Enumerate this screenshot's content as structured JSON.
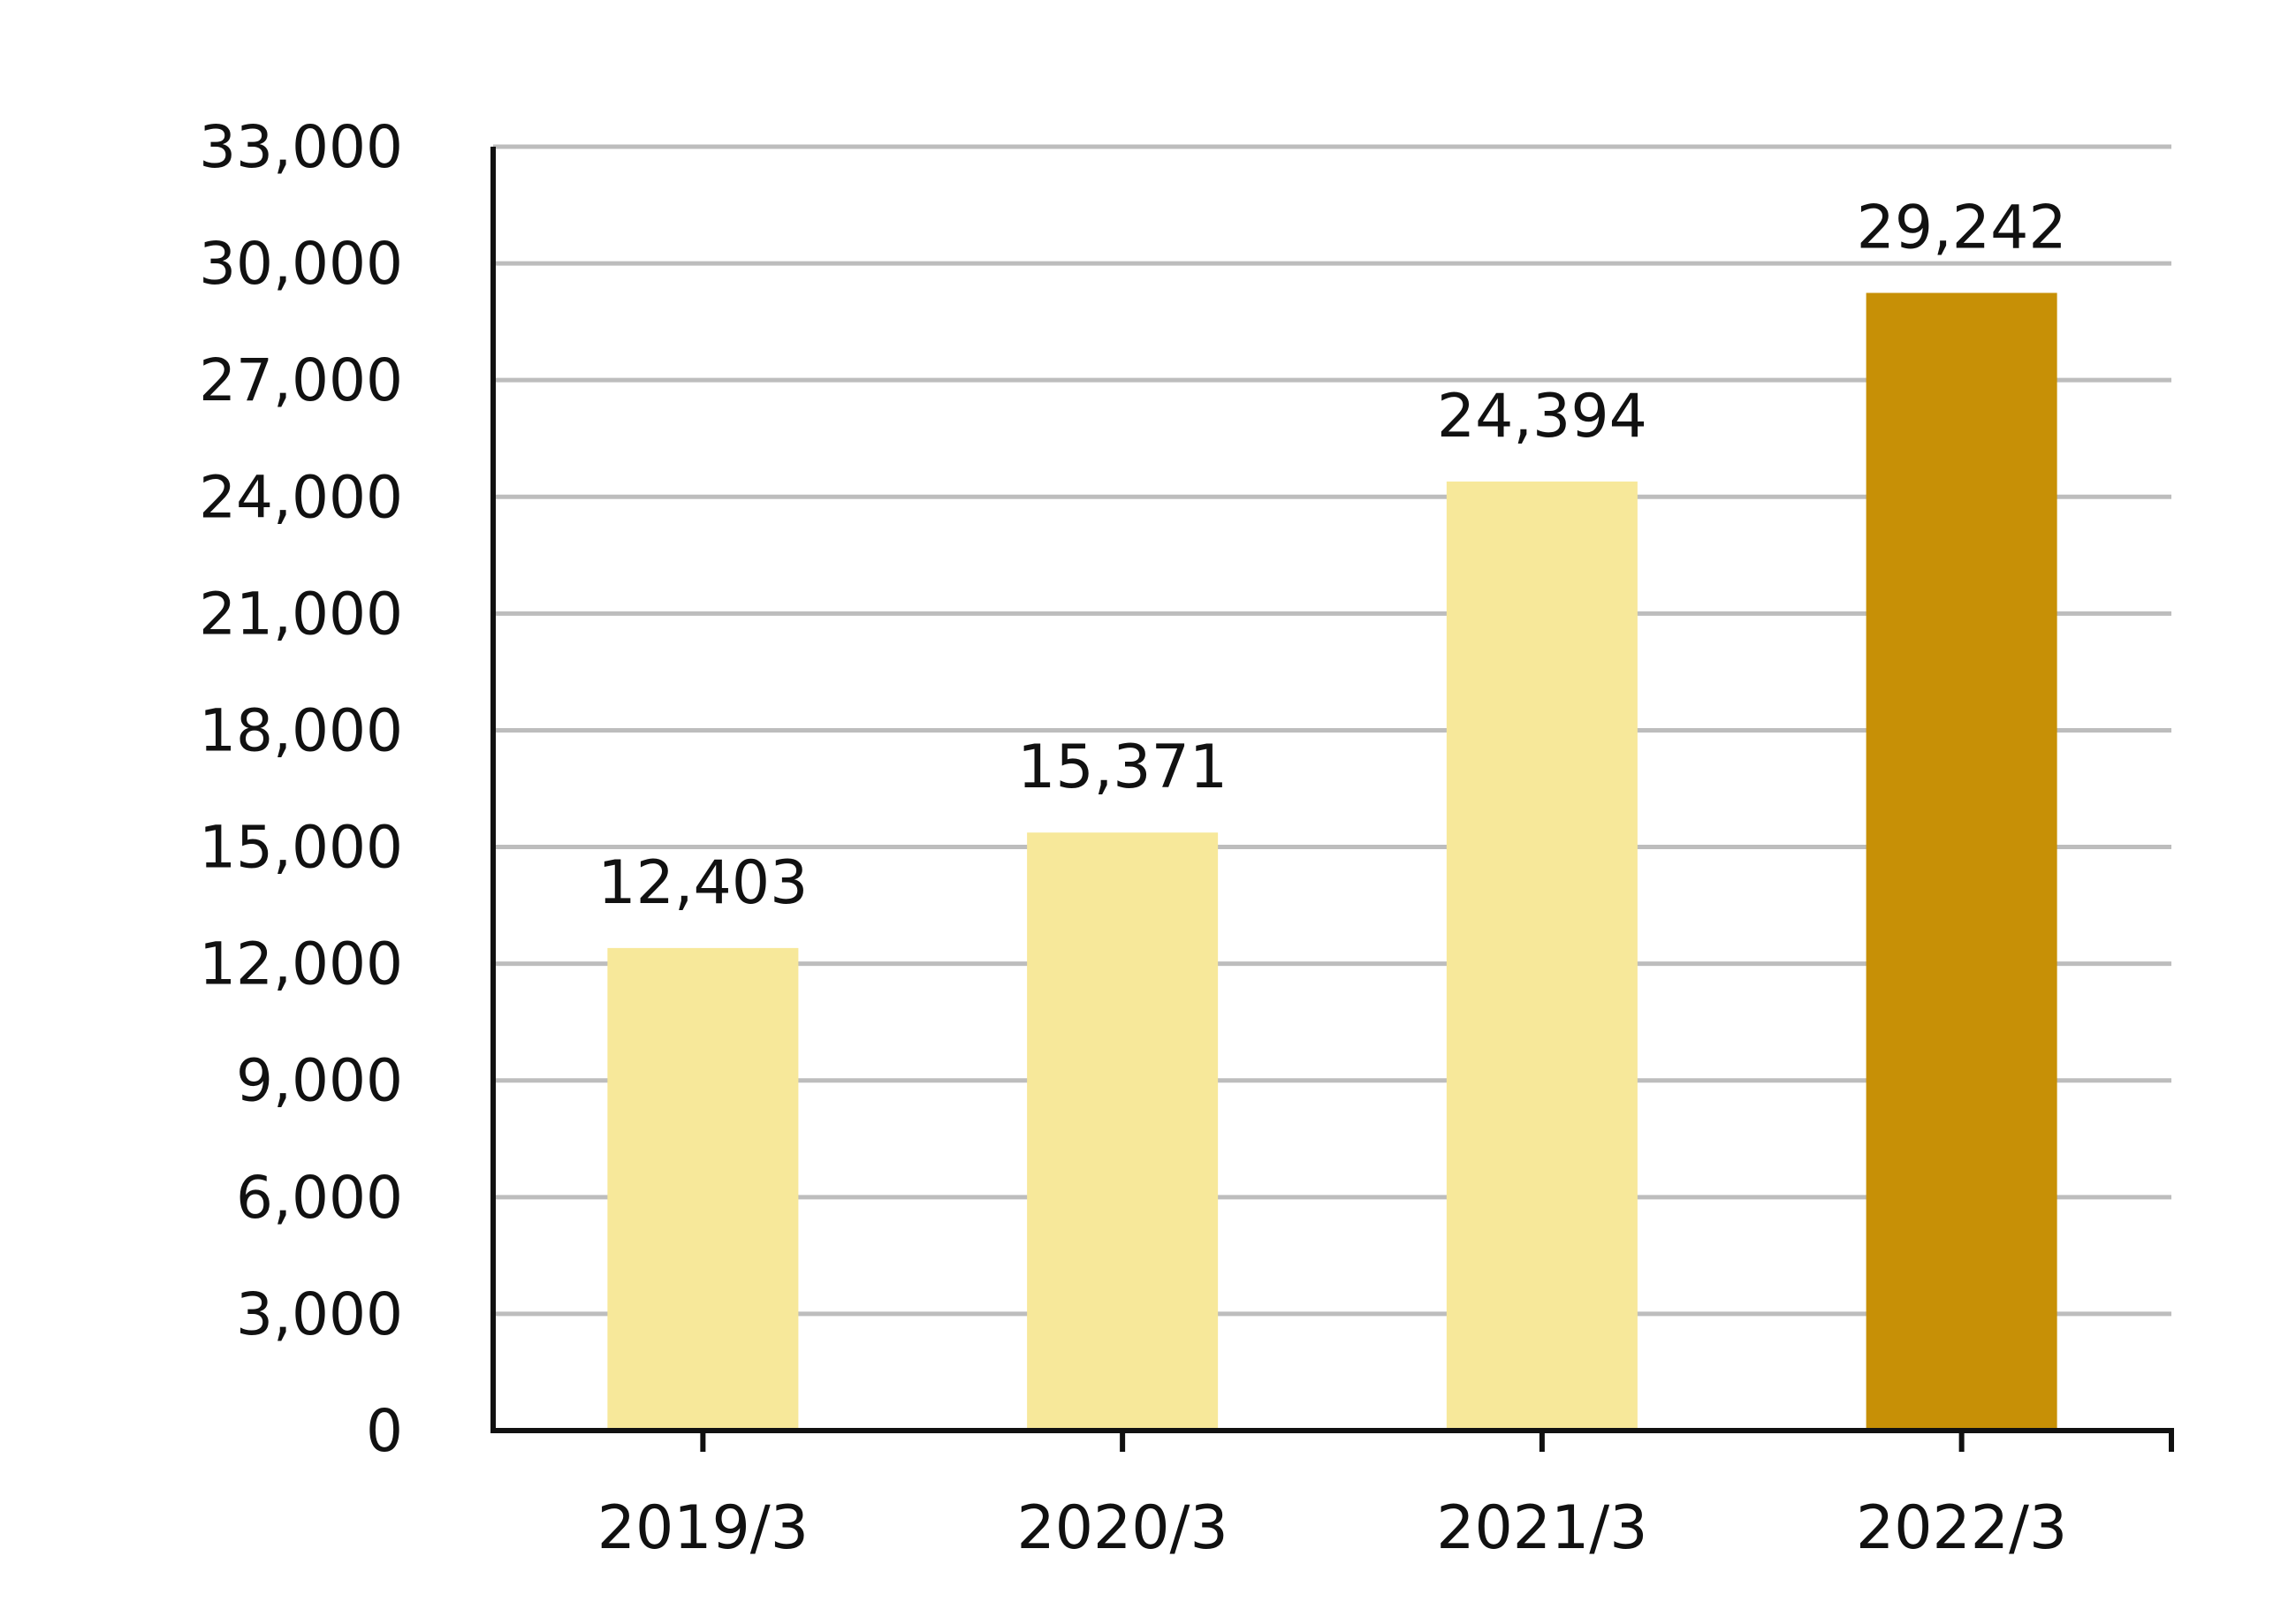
{
  "chart_data": {
    "type": "bar",
    "categories": [
      "2019/3",
      "2020/3",
      "2021/3",
      "2022/3"
    ],
    "values": [
      12403,
      15371,
      24394,
      29242
    ],
    "data_labels": [
      "12,403",
      "15,371",
      "24,394",
      "29,242"
    ],
    "ylim": [
      0,
      33000
    ],
    "yticks": [
      0,
      3000,
      6000,
      9000,
      12000,
      15000,
      18000,
      21000,
      24000,
      27000,
      30000,
      33000
    ],
    "ytick_labels": [
      "0",
      "3,000",
      "6,000",
      "9,000",
      "12,000",
      "15,000",
      "18,000",
      "21,000",
      "24,000",
      "27,000",
      "30,000",
      "33,000"
    ],
    "title": "",
    "xlabel": "",
    "ylabel": "",
    "grid": true,
    "legend": "none",
    "colors": {
      "bar": "#f7e89a",
      "highlight_bar": "#c79006",
      "highlight_index": 3
    }
  }
}
